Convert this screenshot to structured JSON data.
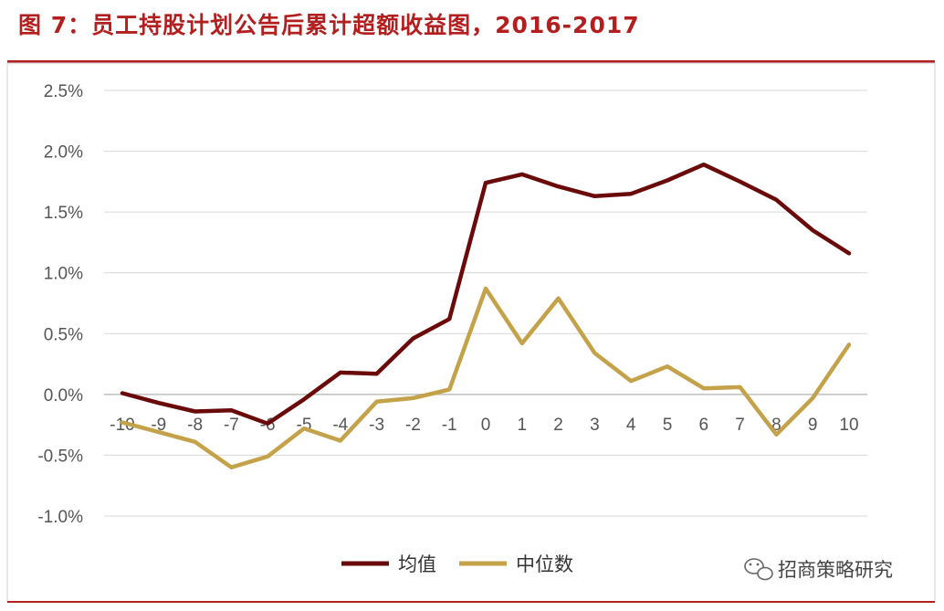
{
  "figure": {
    "title": "图 7：员工持股计划公告后累计超额收益图，2016-2017",
    "accent_color": "#b31f1f"
  },
  "watermark": {
    "icon": "wechat-icon",
    "text": "招商策略研究"
  },
  "chart_data": {
    "type": "line",
    "x": [
      -10,
      -9,
      -8,
      -7,
      -6,
      -5,
      -4,
      -3,
      -2,
      -1,
      0,
      1,
      2,
      3,
      4,
      5,
      6,
      7,
      8,
      9,
      10
    ],
    "x_tick_labels": [
      "-10",
      "-9",
      "-8",
      "-7",
      "-6",
      "-5",
      "-4",
      "-3",
      "-2",
      "-1",
      "0",
      "1",
      "2",
      "3",
      "4",
      "5",
      "6",
      "7",
      "8",
      "9",
      "10"
    ],
    "series": [
      {
        "name": "均值",
        "color": "#6b0a0a",
        "values": [
          0.01,
          -0.07,
          -0.14,
          -0.13,
          -0.24,
          -0.04,
          0.18,
          0.17,
          0.46,
          0.62,
          1.74,
          1.81,
          1.71,
          1.63,
          1.65,
          1.76,
          1.89,
          1.75,
          1.6,
          1.35,
          1.16
        ]
      },
      {
        "name": "中位数",
        "color": "#c4a24a",
        "values": [
          -0.23,
          -0.31,
          -0.39,
          -0.6,
          -0.51,
          -0.28,
          -0.38,
          -0.06,
          -0.03,
          0.04,
          0.87,
          0.42,
          0.79,
          0.34,
          0.11,
          0.23,
          0.05,
          0.06,
          -0.33,
          -0.03,
          0.41
        ]
      }
    ],
    "y_unit": "%",
    "ylim": [
      -1.0,
      2.5
    ],
    "y_ticks": [
      -1.0,
      -0.5,
      0.0,
      0.5,
      1.0,
      1.5,
      2.0,
      2.5
    ],
    "y_tick_labels": [
      "-1.0%",
      "-0.5%",
      "0.0%",
      "0.5%",
      "1.0%",
      "1.5%",
      "2.0%",
      "2.5%"
    ],
    "grid": true,
    "legend_position": "bottom"
  }
}
